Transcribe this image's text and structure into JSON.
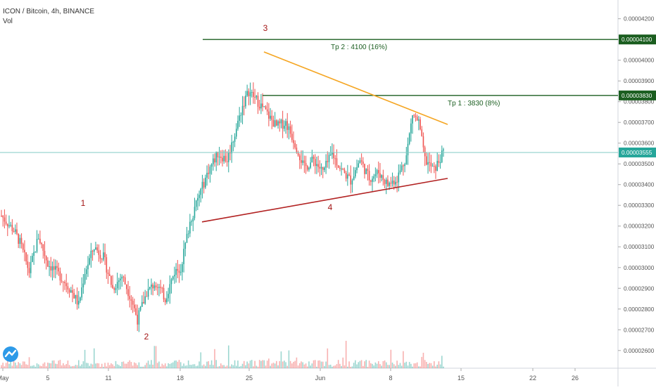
{
  "header": {
    "title": "ICON / Bitcoin, 4h, BINANCE",
    "vol_label": "Vol"
  },
  "colors": {
    "up": "#26a69a",
    "down": "#ef5350",
    "resistance": "#f5a623",
    "support": "#b22222",
    "target_line": "#1b5e20",
    "current_price_line": "#80cbc4",
    "current_price_badge": "#26a69a",
    "label_text": "#a31515"
  },
  "chart_data": {
    "type": "candlestick",
    "title": "ICON / Bitcoin, 4h, BINANCE",
    "x_ticks": [
      "May",
      "5",
      "11",
      "18",
      "25",
      "Jun",
      "8",
      "15",
      "22",
      "26"
    ],
    "y_ticks": [
      "0.00004200",
      "0.00004100",
      "0.00004000",
      "0.00003900",
      "0.00003800",
      "0.00003700",
      "0.00003600",
      "0.00003500",
      "0.00003400",
      "0.00003300",
      "0.00003200",
      "0.00003100",
      "0.00003000",
      "0.00002900",
      "0.00002800",
      "0.00002700",
      "0.00002600"
    ],
    "ylim": [
      2.562e-05,
      4.27e-05
    ],
    "price_path": [
      [
        0,
        3250
      ],
      [
        8,
        3180
      ],
      [
        12,
        3120
      ],
      [
        18,
        2980
      ],
      [
        24,
        3150
      ],
      [
        30,
        3020
      ],
      [
        38,
        2960
      ],
      [
        46,
        2880
      ],
      [
        50,
        2820
      ],
      [
        54,
        2980
      ],
      [
        60,
        3100
      ],
      [
        66,
        3050
      ],
      [
        72,
        2900
      ],
      [
        78,
        2960
      ],
      [
        84,
        2850
      ],
      [
        88,
        2750
      ],
      [
        94,
        2880
      ],
      [
        100,
        2930
      ],
      [
        106,
        2850
      ],
      [
        112,
        2980
      ],
      [
        116,
        3000
      ],
      [
        122,
        3220
      ],
      [
        128,
        3350
      ],
      [
        134,
        3470
      ],
      [
        140,
        3550
      ],
      [
        146,
        3520
      ],
      [
        150,
        3620
      ],
      [
        156,
        3780
      ],
      [
        160,
        3850
      ],
      [
        166,
        3800
      ],
      [
        172,
        3740
      ],
      [
        178,
        3680
      ],
      [
        184,
        3700
      ],
      [
        190,
        3600
      ],
      [
        196,
        3480
      ],
      [
        202,
        3520
      ],
      [
        208,
        3460
      ],
      [
        214,
        3550
      ],
      [
        220,
        3470
      ],
      [
        226,
        3420
      ],
      [
        232,
        3520
      ],
      [
        238,
        3430
      ],
      [
        244,
        3460
      ],
      [
        250,
        3400
      ],
      [
        256,
        3430
      ],
      [
        262,
        3540
      ],
      [
        266,
        3740
      ],
      [
        270,
        3700
      ],
      [
        274,
        3520
      ],
      [
        280,
        3470
      ],
      [
        286,
        3555
      ]
    ],
    "levels": [
      {
        "label": "Tp 2 : 4100 (16%)",
        "value": 4.1e-05,
        "badge": "0.00004100"
      },
      {
        "label": "Tp 1 : 3830 (8%)",
        "value": 3.83e-05,
        "badge": "0.00003830"
      }
    ],
    "current_price": {
      "value": 3.555e-05,
      "badge": "0.00003555"
    },
    "trendlines": [
      {
        "name": "resistance",
        "from": [
          4.04e-05,
          4.04e-05
        ],
        "to": [
          3.69e-05,
          3.69e-05
        ]
      },
      {
        "name": "support",
        "from": [
          3.22e-05,
          3.22e-05
        ],
        "to": [
          3.43e-05,
          3.43e-05
        ]
      }
    ],
    "wave_labels": [
      "1",
      "2",
      "3",
      "4"
    ]
  }
}
